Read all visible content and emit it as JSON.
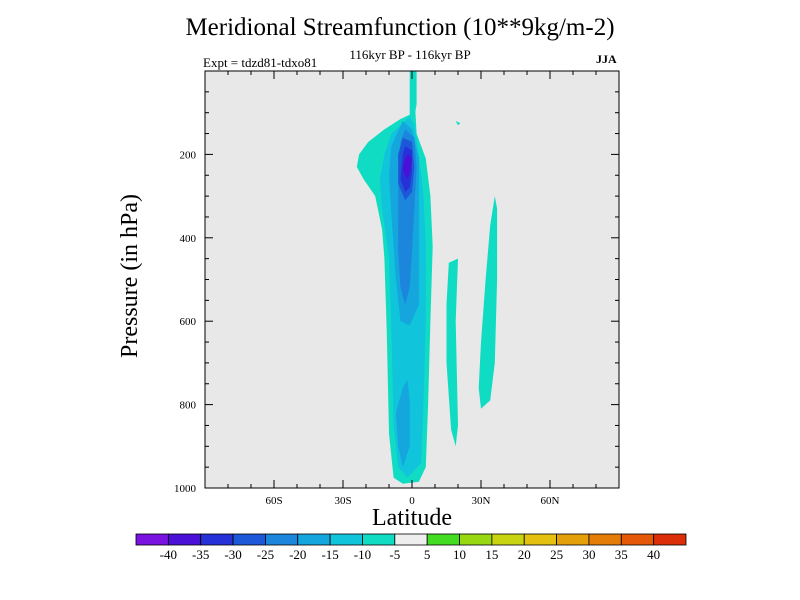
{
  "chart_data": {
    "type": "heatmap",
    "title": "Meridional Streamfunction (10**9kg/m-2)",
    "subtitle": "116kyr BP - 116kyr BP",
    "experiment": "Expt = tdzd81-tdxo81",
    "season": "JJA",
    "xlabel": "Latitude",
    "ylabel": "Pressure (in hPa)",
    "xlim": [
      -90,
      90
    ],
    "ylim": [
      1000,
      0
    ],
    "x_ticks": [
      {
        "value": -60,
        "label": "60S"
      },
      {
        "value": -30,
        "label": "30S"
      },
      {
        "value": 0,
        "label": "0"
      },
      {
        "value": 30,
        "label": "30N"
      },
      {
        "value": 60,
        "label": "60N"
      }
    ],
    "y_ticks": [
      {
        "value": 200,
        "label": "200"
      },
      {
        "value": 400,
        "label": "400"
      },
      {
        "value": 600,
        "label": "600"
      },
      {
        "value": 800,
        "label": "800"
      },
      {
        "value": 1000,
        "label": "1000"
      }
    ],
    "contour_levels": [
      -40,
      -35,
      -30,
      -25,
      -20,
      -15,
      -10,
      -5,
      5,
      10,
      15,
      20,
      25,
      30,
      35,
      40
    ],
    "colorbar_colors": [
      "#7a12e0",
      "#4a10d8",
      "#2632d8",
      "#1c58d8",
      "#1c86dc",
      "#14a6dc",
      "#10c4dc",
      "#10dcc4",
      "#eeeeee",
      "#44dc22",
      "#98d810",
      "#c8d410",
      "#e4c010",
      "#e4a008",
      "#e47c08",
      "#e45808",
      "#dc2e08"
    ],
    "plot_background": "#e8e8e8",
    "regions": [
      {
        "name": "main-cell-minus5",
        "level": -5,
        "color": "#10dcc4",
        "points": [
          [
            -1,
            1
          ],
          [
            1,
            1
          ],
          [
            1,
            50
          ],
          [
            2,
            150
          ],
          [
            6,
            210
          ],
          [
            8,
            300
          ],
          [
            9,
            420
          ],
          [
            8,
            600
          ],
          [
            7,
            800
          ],
          [
            6,
            950
          ],
          [
            3,
            985
          ],
          [
            -4,
            990
          ],
          [
            -8,
            975
          ],
          [
            -10,
            870
          ],
          [
            -11,
            620
          ],
          [
            -12,
            450
          ],
          [
            -13,
            380
          ],
          [
            -16,
            300
          ],
          [
            -21,
            260
          ],
          [
            -24,
            230
          ],
          [
            -23,
            200
          ],
          [
            -19,
            170
          ],
          [
            -12,
            140
          ],
          [
            -5,
            115
          ],
          [
            -1,
            105
          ]
        ]
      },
      {
        "name": "main-cell-minus10",
        "level": -10,
        "color": "#10c4dc",
        "points": [
          [
            -1,
            110
          ],
          [
            1,
            130
          ],
          [
            3,
            200
          ],
          [
            5,
            300
          ],
          [
            6,
            420
          ],
          [
            6,
            600
          ],
          [
            5,
            800
          ],
          [
            4,
            940
          ],
          [
            -2,
            975
          ],
          [
            -6,
            950
          ],
          [
            -8,
            850
          ],
          [
            -9,
            620
          ],
          [
            -10,
            450
          ],
          [
            -13,
            330
          ],
          [
            -14,
            260
          ],
          [
            -12,
            200
          ],
          [
            -9,
            150
          ]
        ]
      },
      {
        "name": "main-cell-minus15",
        "level": -15,
        "color": "#14a6dc",
        "points": [
          [
            -4,
            120
          ],
          [
            0,
            140
          ],
          [
            3,
            210
          ],
          [
            3,
            320
          ],
          [
            3,
            440
          ],
          [
            3,
            560
          ],
          [
            -1,
            610
          ],
          [
            -5,
            600
          ],
          [
            -7,
            500
          ],
          [
            -8,
            420
          ],
          [
            -9,
            340
          ],
          [
            -10,
            250
          ],
          [
            -9,
            180
          ]
        ]
      },
      {
        "name": "lower-cell-minus15",
        "level": -15,
        "color": "#14a6dc",
        "points": [
          [
            -4,
            760
          ],
          [
            -2,
            740
          ],
          [
            -1,
            790
          ],
          [
            -1,
            900
          ],
          [
            -4,
            950
          ],
          [
            -6,
            900
          ],
          [
            -7,
            820
          ]
        ]
      },
      {
        "name": "main-cell-minus20",
        "level": -20,
        "color": "#1c86dc",
        "points": [
          [
            -3,
            140
          ],
          [
            1,
            160
          ],
          [
            2,
            230
          ],
          [
            1,
            330
          ],
          [
            0,
            430
          ],
          [
            -1,
            520
          ],
          [
            -3,
            560
          ],
          [
            -5,
            520
          ],
          [
            -6,
            430
          ],
          [
            -6,
            330
          ],
          [
            -6,
            230
          ],
          [
            -5,
            170
          ]
        ]
      },
      {
        "name": "main-cell-minus25",
        "level": -25,
        "color": "#1c58d8",
        "points": [
          [
            -4,
            160
          ],
          [
            0,
            170
          ],
          [
            1,
            230
          ],
          [
            0,
            290
          ],
          [
            -3,
            310
          ],
          [
            -6,
            270
          ],
          [
            -6,
            200
          ]
        ]
      },
      {
        "name": "main-cell-minus30",
        "level": -30,
        "color": "#2632d8",
        "points": [
          [
            -3,
            180
          ],
          [
            0,
            190
          ],
          [
            0,
            240
          ],
          [
            -1,
            280
          ],
          [
            -3,
            290
          ],
          [
            -5,
            260
          ],
          [
            -4,
            200
          ]
        ]
      },
      {
        "name": "main-cell-minus35",
        "level": -35,
        "color": "#4a10d8",
        "points": [
          [
            -2,
            200
          ],
          [
            0,
            210
          ],
          [
            -1,
            245
          ],
          [
            -2,
            260
          ],
          [
            -4,
            235
          ],
          [
            -3,
            210
          ]
        ]
      },
      {
        "name": "north-cell-15n",
        "level": -5,
        "color": "#10dcc4",
        "points": [
          [
            16,
            460
          ],
          [
            20,
            450
          ],
          [
            19,
            600
          ],
          [
            20,
            850
          ],
          [
            19,
            900
          ],
          [
            17,
            860
          ],
          [
            15,
            700
          ],
          [
            15,
            560
          ]
        ]
      },
      {
        "name": "north-cell-30n",
        "level": -5,
        "color": "#10dcc4",
        "points": [
          [
            36,
            300
          ],
          [
            37,
            330
          ],
          [
            37,
            500
          ],
          [
            36,
            700
          ],
          [
            34,
            790
          ],
          [
            30,
            810
          ],
          [
            29,
            760
          ],
          [
            30,
            650
          ],
          [
            32,
            500
          ],
          [
            34,
            370
          ]
        ]
      },
      {
        "name": "blob-20n",
        "level": -5,
        "color": "#10dcc4",
        "points": [
          [
            19,
            120
          ],
          [
            21,
            125
          ],
          [
            20,
            130
          ]
        ]
      },
      {
        "name": "top-plume",
        "level": -5,
        "color": "#10dcc4",
        "points": [
          [
            0,
            1
          ],
          [
            2,
            1
          ],
          [
            2,
            80
          ],
          [
            1,
            110
          ],
          [
            0,
            95
          ]
        ]
      }
    ]
  }
}
